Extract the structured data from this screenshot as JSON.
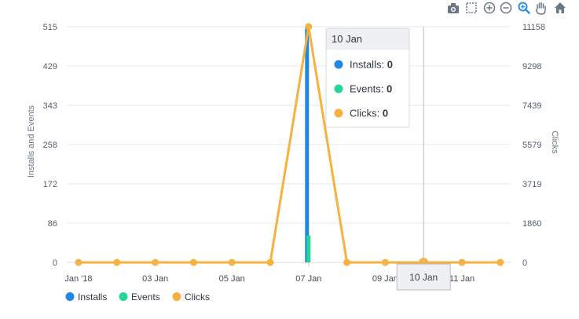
{
  "toolbar": {
    "icons": [
      "camera-icon",
      "box-select-icon",
      "zoom-in-icon",
      "zoom-out-icon",
      "zoom-magnifier-icon",
      "pan-hand-icon",
      "home-icon"
    ],
    "active_color": "#2a8fe0",
    "color": "#6b7785"
  },
  "chart_data": {
    "type": "bar+line",
    "x": [
      "01 Jan",
      "02 Jan",
      "03 Jan",
      "04 Jan",
      "05 Jan",
      "06 Jan",
      "07 Jan",
      "08 Jan",
      "09 Jan",
      "10 Jan",
      "11 Jan",
      "12 Jan"
    ],
    "x_tick_labels": [
      {
        "x": "01 Jan",
        "label": "Jan '18"
      },
      {
        "x": "03 Jan",
        "label": "03 Jan"
      },
      {
        "x": "05 Jan",
        "label": "05 Jan"
      },
      {
        "x": "07 Jan",
        "label": "07 Jan"
      },
      {
        "x": "09 Jan",
        "label": "09 Jan"
      },
      {
        "x": "11 Jan",
        "label": "11 Jan"
      }
    ],
    "ylabel_left": "Installs and Events",
    "ylabel_right": "Clicks",
    "ylim_left": [
      0,
      515
    ],
    "ylim_right": [
      0,
      11158
    ],
    "y_ticks_left": [
      "0",
      "86",
      "172",
      "258",
      "343",
      "429",
      "515"
    ],
    "y_ticks_right": [
      "0",
      "1860",
      "3719",
      "5579",
      "7439",
      "9298",
      "11158"
    ],
    "grid": true,
    "series": [
      {
        "name": "Installs",
        "type": "bar",
        "axis": "left",
        "color": "#1f88e5",
        "values": [
          0,
          0,
          0,
          0,
          0,
          0,
          515,
          0,
          0,
          0,
          0,
          0
        ]
      },
      {
        "name": "Events",
        "type": "bar",
        "axis": "left",
        "color": "#27d59b",
        "values": [
          0,
          0,
          0,
          0,
          0,
          0,
          59,
          0,
          0,
          0,
          0,
          0
        ]
      },
      {
        "name": "Clicks",
        "type": "line",
        "axis": "right",
        "color": "#f7b13e",
        "values": [
          0,
          0,
          0,
          0,
          0,
          0,
          11158,
          0,
          0,
          0,
          0,
          0
        ]
      }
    ],
    "legend_position": "bottom-left",
    "hover": {
      "x": "10 Jan",
      "title": "10 Jan",
      "axis_label": "10 Jan",
      "rows": [
        {
          "name": "Installs",
          "value": "0",
          "color": "#1f88e5"
        },
        {
          "name": "Events",
          "value": "0",
          "color": "#27d59b"
        },
        {
          "name": "Clicks",
          "value": "0",
          "color": "#f7b13e"
        }
      ]
    }
  }
}
